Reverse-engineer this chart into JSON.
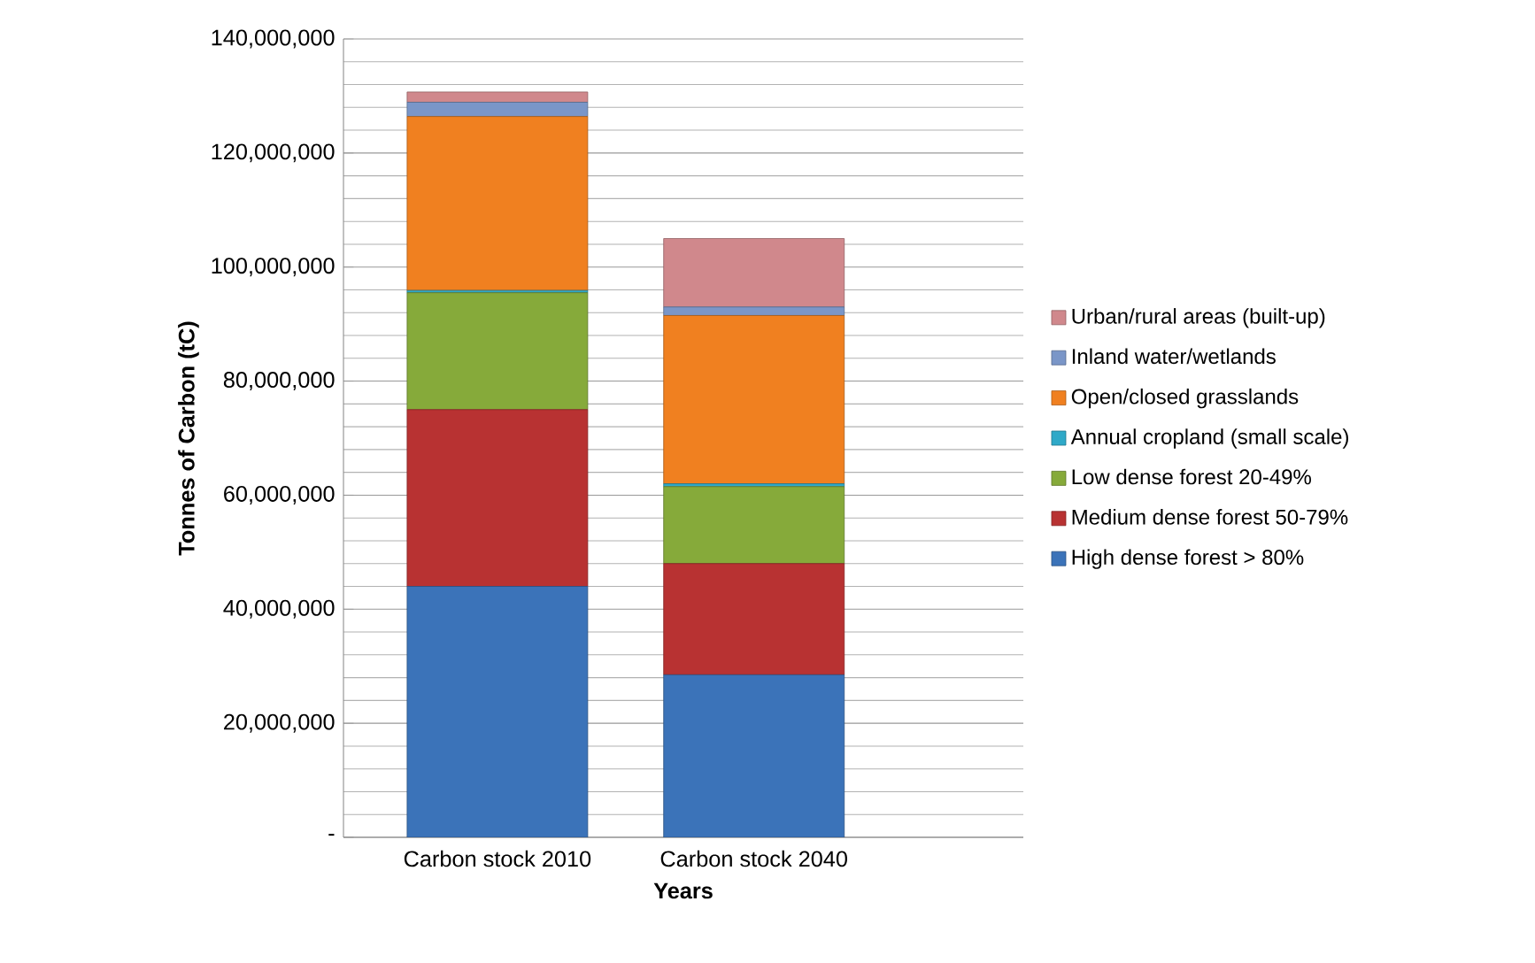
{
  "chart_data": {
    "type": "bar",
    "stacked": true,
    "xlabel": "Years",
    "ylabel": "Tonnes of Carbon (tC)",
    "categories": [
      "Carbon stock 2010",
      "Carbon stock 2040"
    ],
    "series": [
      {
        "name": "High dense forest > 80%",
        "color": "#3b73b9",
        "values": [
          44000000,
          28500000
        ]
      },
      {
        "name": "Medium dense forest 50-79%",
        "color": "#b83232",
        "values": [
          31000000,
          19500000
        ]
      },
      {
        "name": "Low dense forest 20-49%",
        "color": "#86aa3a",
        "values": [
          20500000,
          13500000
        ]
      },
      {
        "name": "Annual cropland (small scale)",
        "color": "#2fa9c8",
        "values": [
          400000,
          500000
        ]
      },
      {
        "name": "Open/closed grasslands",
        "color": "#f08020",
        "values": [
          30500000,
          29500000
        ]
      },
      {
        "name": "Inland water/wetlands",
        "color": "#7a96c8",
        "values": [
          2500000,
          1500000
        ]
      },
      {
        "name": "Urban/rural areas (built-up)",
        "color": "#d0888c",
        "values": [
          1800000,
          12000000
        ]
      }
    ],
    "ylim": [
      0,
      140000000
    ],
    "yticks": [
      {
        "value": 0,
        "label": "-"
      },
      {
        "value": 20000000,
        "label": "20,000,000"
      },
      {
        "value": 40000000,
        "label": "40,000,000"
      },
      {
        "value": 60000000,
        "label": "60,000,000"
      },
      {
        "value": 80000000,
        "label": "80,000,000"
      },
      {
        "value": 100000000,
        "label": "100,000,000"
      },
      {
        "value": 120000000,
        "label": "120,000,000"
      },
      {
        "value": 140000000,
        "label": "140,000,000"
      }
    ],
    "grid": "y",
    "legend": "right"
  }
}
